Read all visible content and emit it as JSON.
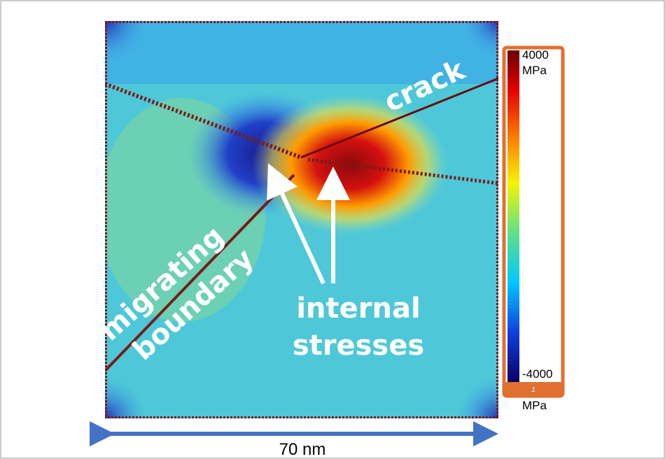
{
  "annotations": {
    "crack": "crack",
    "boundary_line1": "migrating",
    "boundary_line2": "boundary",
    "stress_line1": "internal",
    "stress_line2": "stresses"
  },
  "colorbar": {
    "max": 4000,
    "max_unit": "MPa",
    "min": -4000,
    "min_unit": "MPa",
    "page": 1
  },
  "scale_bar": {
    "label": "70 nm"
  }
}
